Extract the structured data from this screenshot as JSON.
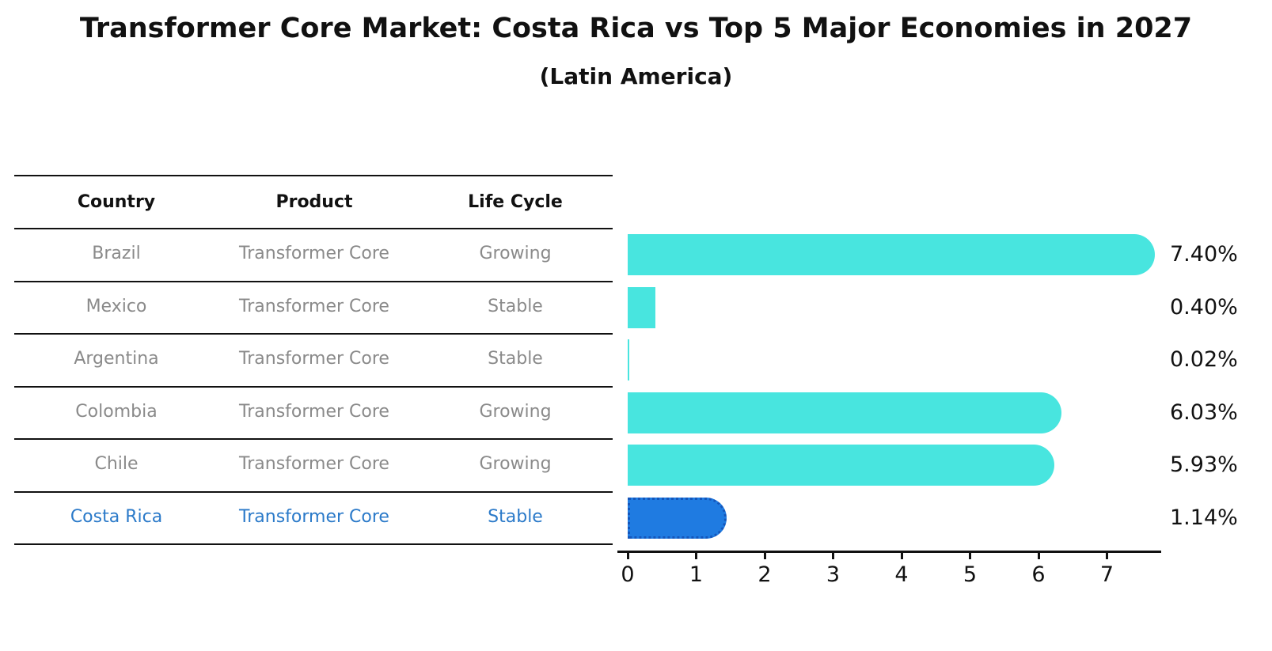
{
  "title": "Transformer Core Market: Costa Rica vs Top 5 Major Economies in 2027",
  "subtitle": "(Latin America)",
  "table": {
    "headers": [
      "Country",
      "Product",
      "Life Cycle"
    ],
    "rows": [
      {
        "country": "Brazil",
        "product": "Transformer Core",
        "life_cycle": "Growing",
        "highlight": false
      },
      {
        "country": "Mexico",
        "product": "Transformer Core",
        "life_cycle": "Stable",
        "highlight": false
      },
      {
        "country": "Argentina",
        "product": "Transformer Core",
        "life_cycle": "Stable",
        "highlight": false
      },
      {
        "country": "Colombia",
        "product": "Transformer Core",
        "life_cycle": "Growing",
        "highlight": false
      },
      {
        "country": "Chile",
        "product": "Transformer Core",
        "life_cycle": "Growing",
        "highlight": false
      },
      {
        "country": "Costa Rica",
        "product": "Transformer Core",
        "life_cycle": "Stable",
        "highlight": true
      }
    ]
  },
  "chart_data": {
    "type": "bar",
    "orientation": "horizontal",
    "title": "Transformer Core Market: Costa Rica vs Top 5 Major Economies in 2027",
    "subtitle": "(Latin America)",
    "categories": [
      "Brazil",
      "Mexico",
      "Argentina",
      "Colombia",
      "Chile",
      "Costa Rica"
    ],
    "values": [
      7.4,
      0.4,
      0.02,
      6.03,
      5.93,
      1.14
    ],
    "value_labels": [
      "7.40%",
      "0.40%",
      "0.02%",
      "6.03%",
      "5.93%",
      "1.14%"
    ],
    "x_ticks": [
      "0",
      "1",
      "2",
      "3",
      "4",
      "5",
      "6",
      "7"
    ],
    "xlim": [
      0,
      7.8
    ],
    "grid": false,
    "legend": "none",
    "highlight_index": 5
  },
  "colors": {
    "bar": "#48E5DF",
    "highlight_bar": "#1F7BE1",
    "highlight_border": "#1456BB",
    "highlight_text": "#2B7AC9",
    "row_text": "#8A8A8A",
    "header_text": "#111111",
    "axis": "#111111"
  }
}
